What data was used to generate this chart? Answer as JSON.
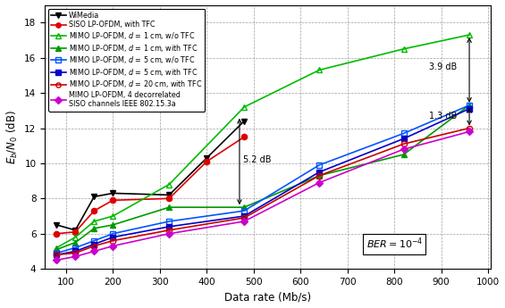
{
  "x": [
    80,
    120,
    160,
    200,
    320,
    400,
    480,
    640,
    820,
    960
  ],
  "series": {
    "wimedia": {
      "label": "WiMedia",
      "color": "#000000",
      "marker": "v",
      "marker_face": "#000000",
      "marker_edge": "#000000",
      "linestyle": "-",
      "y": [
        6.5,
        6.2,
        8.1,
        8.3,
        8.2,
        10.3,
        12.4,
        null,
        null,
        null
      ]
    },
    "siso_tfc": {
      "label": "SISO LP-OFDM, with TFC",
      "color": "#dd0000",
      "marker": "o",
      "marker_face": "#dd0000",
      "marker_edge": "#dd0000",
      "linestyle": "-",
      "y": [
        6.0,
        6.1,
        7.3,
        7.9,
        8.0,
        10.1,
        11.5,
        null,
        null,
        null
      ]
    },
    "mimo_d1_wo": {
      "label": "MIMO LP-OFDM, $d$ = 1 cm, w/o TFC",
      "color": "#00bb00",
      "marker": "^",
      "marker_face": "none",
      "marker_edge": "#00bb00",
      "linestyle": "-",
      "y": [
        5.2,
        5.8,
        6.7,
        7.0,
        8.8,
        null,
        13.2,
        15.3,
        16.5,
        17.3
      ]
    },
    "mimo_d1_tfc": {
      "label": "MIMO LP-OFDM, $d$ = 1 cm, with TFC",
      "color": "#009900",
      "marker": "^",
      "marker_face": "#009900",
      "marker_edge": "#009900",
      "linestyle": "-",
      "y": [
        5.1,
        5.5,
        6.3,
        6.5,
        7.5,
        null,
        7.5,
        9.3,
        10.5,
        13.3
      ]
    },
    "mimo_d5_wo": {
      "label": "MIMO LP-OFDM, $d$ = 5 cm, w/o TFC",
      "color": "#0055ff",
      "marker": "s",
      "marker_face": "none",
      "marker_edge": "#0055ff",
      "linestyle": "-",
      "y": [
        4.9,
        5.2,
        5.6,
        6.0,
        6.7,
        null,
        7.3,
        9.9,
        11.7,
        13.3
      ]
    },
    "mimo_d5_tfc": {
      "label": "MIMO LP-OFDM, $d$ = 5 cm, with TFC",
      "color": "#0000cc",
      "marker": "s",
      "marker_face": "#0000cc",
      "marker_edge": "#0000cc",
      "linestyle": "-",
      "y": [
        4.8,
        5.0,
        5.4,
        5.8,
        6.4,
        null,
        7.0,
        9.5,
        11.4,
        13.1
      ]
    },
    "mimo_d20_tfc": {
      "label": "MIMO LP-OFDM, $d$ = 20 cm, with TFC",
      "color": "#cc0000",
      "marker": "o",
      "marker_face": "none",
      "marker_edge": "#cc0000",
      "linestyle": "-",
      "y": [
        4.8,
        4.9,
        5.3,
        5.6,
        6.2,
        null,
        6.9,
        9.3,
        11.1,
        12.0
      ]
    },
    "mimo_decorr": {
      "label": "MIMO LP-OFDM, 4 decorrelated\nSISO channels IEEE 802.15.3a",
      "color": "#cc00cc",
      "marker": "D",
      "marker_face": "#cc00cc",
      "marker_edge": "#cc00cc",
      "linestyle": "-",
      "y": [
        4.5,
        4.7,
        5.0,
        5.3,
        6.0,
        null,
        6.7,
        8.9,
        10.8,
        11.8
      ]
    }
  },
  "xlim": [
    55,
    1005
  ],
  "ylim": [
    4,
    19
  ],
  "yticks": [
    4,
    6,
    8,
    10,
    12,
    14,
    16,
    18
  ],
  "xticks": [
    100,
    200,
    300,
    400,
    500,
    600,
    700,
    800,
    900,
    1000
  ],
  "xlabel": "Data rate (Mb/s)",
  "ylabel": "$E_b/N_0$ (dB)",
  "figsize": [
    5.65,
    3.45
  ],
  "dpi": 100
}
